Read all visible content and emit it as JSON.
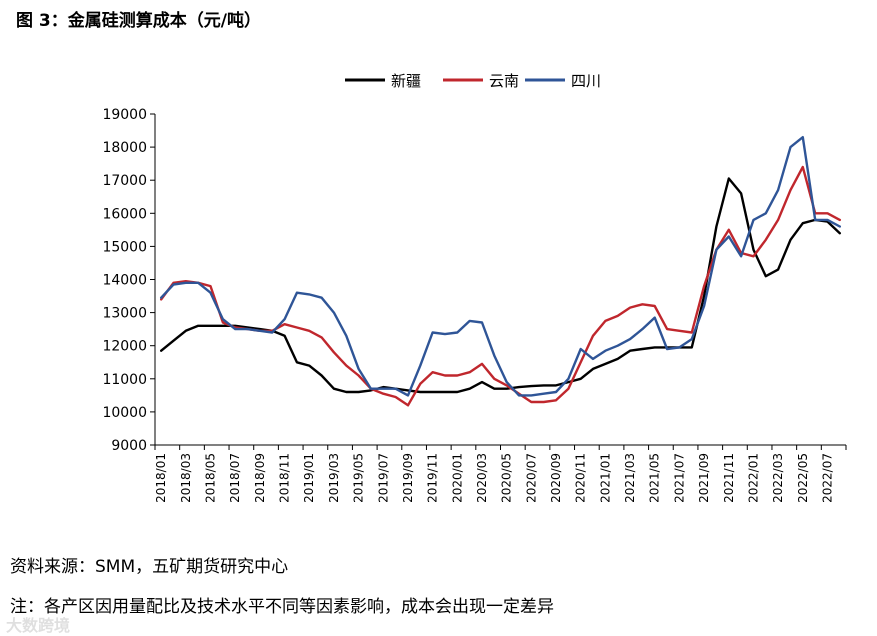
{
  "figure_title": "图 3：金属硅测算成本（元/吨）",
  "source": "资料来源：SMM，五矿期货研究中心",
  "note": "注：各产区因用量配比及技术水平不同等因素影响，成本会出现一定差异",
  "watermark": "大数跨境",
  "chart_data": {
    "type": "line",
    "title": "金属硅测算成本（元/吨）",
    "xlabel": "",
    "ylabel": "",
    "ylim": [
      9000,
      19000
    ],
    "yticks": [
      9000,
      10000,
      11000,
      12000,
      13000,
      14000,
      15000,
      16000,
      17000,
      18000,
      19000
    ],
    "grid": false,
    "legend_position": "top-center",
    "x": [
      "2018/01",
      "2018/02",
      "2018/03",
      "2018/04",
      "2018/05",
      "2018/06",
      "2018/07",
      "2018/08",
      "2018/09",
      "2018/10",
      "2018/11",
      "2018/12",
      "2019/01",
      "2019/02",
      "2019/03",
      "2019/04",
      "2019/05",
      "2019/06",
      "2019/07",
      "2019/08",
      "2019/09",
      "2019/10",
      "2019/11",
      "2019/12",
      "2020/01",
      "2020/02",
      "2020/03",
      "2020/04",
      "2020/05",
      "2020/06",
      "2020/07",
      "2020/08",
      "2020/09",
      "2020/10",
      "2020/11",
      "2020/12",
      "2021/01",
      "2021/02",
      "2021/03",
      "2021/04",
      "2021/05",
      "2021/06",
      "2021/07",
      "2021/08",
      "2021/09",
      "2021/10",
      "2021/11",
      "2021/12",
      "2022/01",
      "2022/02",
      "2022/03",
      "2022/04",
      "2022/05",
      "2022/06",
      "2022/07",
      "2022/08"
    ],
    "xtick_labels": [
      "2018/01",
      "2018/03",
      "2018/05",
      "2018/07",
      "2018/09",
      "2018/11",
      "2019/01",
      "2019/03",
      "2019/05",
      "2019/07",
      "2019/09",
      "2019/11",
      "2020/01",
      "2020/03",
      "2020/05",
      "2020/07",
      "2020/09",
      "2020/11",
      "2021/01",
      "2021/03",
      "2021/05",
      "2021/07",
      "2021/09",
      "2021/11",
      "2022/01",
      "2022/03",
      "2022/05",
      "2022/07"
    ],
    "series": [
      {
        "name": "新疆",
        "color": "#000000",
        "values": [
          11850,
          12150,
          12450,
          12600,
          12600,
          12600,
          12600,
          12550,
          12500,
          12450,
          12300,
          11500,
          11400,
          11100,
          10700,
          10600,
          10600,
          10650,
          10750,
          10700,
          10650,
          10600,
          10600,
          10600,
          10600,
          10700,
          10900,
          10700,
          10700,
          10750,
          10780,
          10800,
          10800,
          10900,
          11000,
          11300,
          11450,
          11600,
          11850,
          11900,
          11950,
          11950,
          11950,
          11950,
          13500,
          15600,
          17050,
          16600,
          14900,
          14100,
          14300,
          15200,
          15700,
          15800,
          15750,
          15400
        ]
      },
      {
        "name": "云南",
        "color": "#c0272d",
        "values": [
          13400,
          13900,
          13950,
          13900,
          13800,
          12700,
          12550,
          12500,
          12450,
          12450,
          12650,
          12550,
          12450,
          12250,
          11800,
          11400,
          11100,
          10700,
          10550,
          10450,
          10200,
          10850,
          11200,
          11100,
          11100,
          11200,
          11450,
          11000,
          10800,
          10550,
          10300,
          10300,
          10350,
          10700,
          11500,
          12300,
          12750,
          12900,
          13150,
          13250,
          13200,
          12500,
          12450,
          12400,
          13800,
          14900,
          15500,
          14800,
          14700,
          15200,
          15800,
          16700,
          17400,
          16000,
          16000,
          15800
        ]
      },
      {
        "name": "四川",
        "color": "#2f5597",
        "values": [
          13450,
          13850,
          13900,
          13900,
          13600,
          12800,
          12500,
          12500,
          12450,
          12400,
          12800,
          13600,
          13550,
          13450,
          13000,
          12300,
          11300,
          10700,
          10700,
          10700,
          10500,
          11400,
          12400,
          12350,
          12400,
          12750,
          12700,
          11700,
          10900,
          10500,
          10500,
          10550,
          10600,
          11000,
          11900,
          11600,
          11850,
          12000,
          12200,
          12500,
          12850,
          11900,
          11950,
          12200,
          13200,
          14900,
          15300,
          14700,
          15800,
          16000,
          16700,
          18000,
          18300,
          15800,
          15800,
          15600
        ]
      }
    ]
  }
}
